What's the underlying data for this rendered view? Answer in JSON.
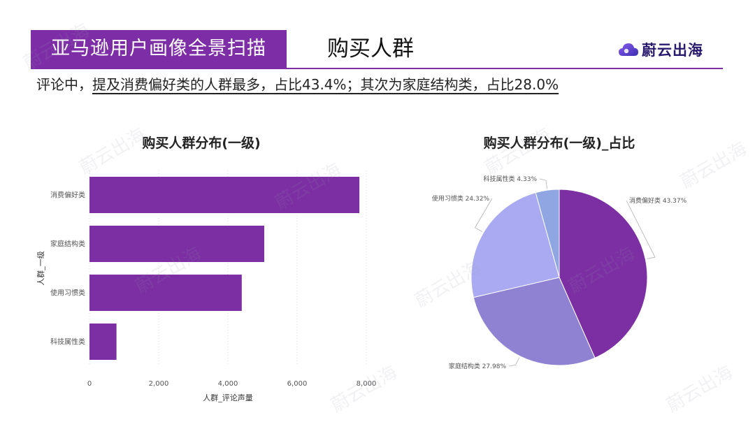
{
  "header": {
    "banner": "亚马逊用户画像全景扫描",
    "section_title": "购买人群",
    "logo_text": "蔚云出海"
  },
  "summary": {
    "prefix": "评论中，",
    "underlined": "提及消费偏好类的人群最多，占比43.4%；其次为家庭结构类，占比28.0%"
  },
  "colors": {
    "brand_purple": "#7d2ea6",
    "bar": "#7b2fa3",
    "pie": [
      "#7b2fa3",
      "#8f82d3",
      "#aaaaf2",
      "#8fa6e3"
    ]
  },
  "watermark": "蔚云出海",
  "chart_data": [
    {
      "type": "bar",
      "orientation": "horizontal",
      "title": "购买人群分布(一级)",
      "xlabel": "人群_评论声量",
      "ylabel": "人群_一级",
      "categories": [
        "消费偏好类",
        "家庭结构类",
        "使用习惯类",
        "科技属性类"
      ],
      "values": [
        7800,
        5050,
        4400,
        780
      ],
      "xlim": [
        0,
        8000
      ],
      "xticks": [
        0,
        2000,
        4000,
        6000,
        8000
      ],
      "xtick_labels": [
        "0",
        "2,000",
        "4,000",
        "6,000",
        "8,000"
      ],
      "grid": "vertical dotted"
    },
    {
      "type": "pie",
      "title": "购买人群分布(一级)_占比",
      "slices": [
        {
          "label": "消费偏好类",
          "value": 43.37,
          "text": "消费偏好类 43.37%"
        },
        {
          "label": "家庭结构类",
          "value": 27.98,
          "text": "家庭结构类 27.98%"
        },
        {
          "label": "使用习惯类",
          "value": 24.32,
          "text": "使用习惯类 24.32%"
        },
        {
          "label": "科技属性类",
          "value": 4.33,
          "text": "科技属性类 4.33%"
        }
      ]
    }
  ]
}
